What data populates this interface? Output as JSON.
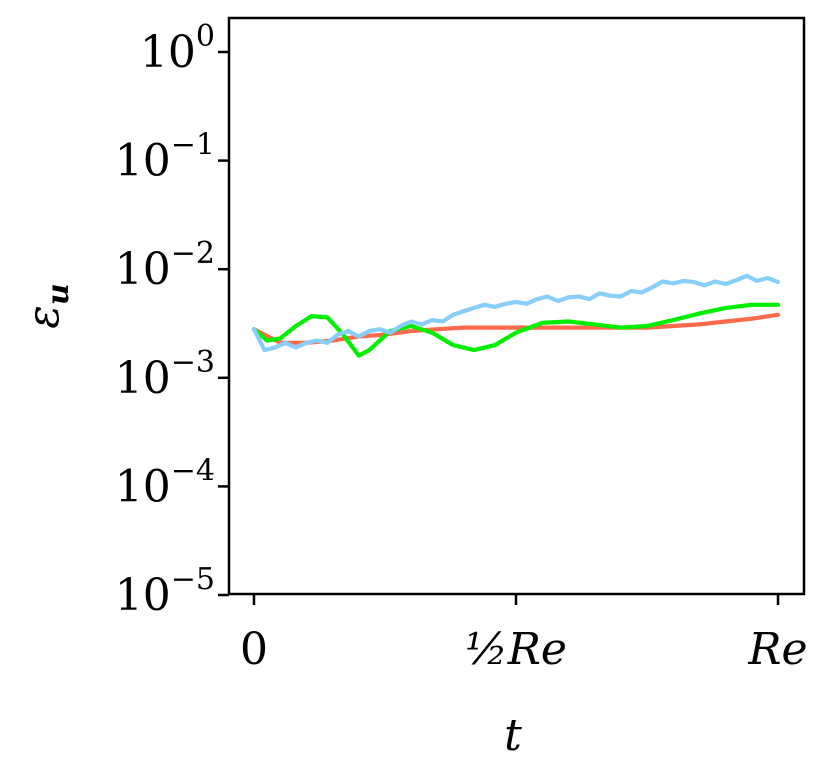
{
  "chart_data": {
    "type": "line",
    "xlabel": "t",
    "ylabel": "ε_u",
    "ylabel_main": "ε",
    "ylabel_sub": "u",
    "y_scale": "log",
    "ylim": [
      1e-05,
      2
    ],
    "xlim": [
      -0.05,
      1.05
    ],
    "grid": false,
    "x_ticks": [
      {
        "value": 0,
        "label": "0"
      },
      {
        "value": 0.5,
        "label": "½Re"
      },
      {
        "value": 1,
        "label": "Re"
      }
    ],
    "y_ticks": [
      {
        "value": 1,
        "base": "10",
        "exp": "0"
      },
      {
        "value": 0.1,
        "base": "10",
        "exp": "−1"
      },
      {
        "value": 0.01,
        "base": "10",
        "exp": "−2"
      },
      {
        "value": 0.001,
        "base": "10",
        "exp": "−3"
      },
      {
        "value": 0.0001,
        "base": "10",
        "exp": "−4"
      },
      {
        "value": 1e-05,
        "base": "10",
        "exp": "−5"
      }
    ],
    "series": [
      {
        "color": "#ff6a4d",
        "x": [
          0,
          0.05,
          0.1,
          0.15,
          0.2,
          0.25,
          0.3,
          0.35,
          0.4,
          0.45,
          0.5,
          0.55,
          0.6,
          0.65,
          0.7,
          0.75,
          0.8,
          0.85,
          0.9,
          0.95,
          1.0
        ],
        "y": [
          0.0028,
          0.0021,
          0.0021,
          0.0022,
          0.0024,
          0.0025,
          0.0027,
          0.0028,
          0.0029,
          0.0029,
          0.0029,
          0.0029,
          0.0029,
          0.0029,
          0.0029,
          0.0029,
          0.003,
          0.0031,
          0.0033,
          0.0035,
          0.0038
        ]
      },
      {
        "color": "#00ee00",
        "x": [
          0,
          0.025,
          0.05,
          0.08,
          0.11,
          0.14,
          0.17,
          0.2,
          0.22,
          0.26,
          0.3,
          0.34,
          0.38,
          0.42,
          0.46,
          0.5,
          0.55,
          0.6,
          0.65,
          0.7,
          0.75,
          0.8,
          0.85,
          0.9,
          0.95,
          1.0
        ],
        "y": [
          0.0028,
          0.0022,
          0.0023,
          0.003,
          0.0037,
          0.0036,
          0.0025,
          0.0016,
          0.0018,
          0.0027,
          0.003,
          0.0026,
          0.002,
          0.0018,
          0.002,
          0.0026,
          0.0032,
          0.0033,
          0.0031,
          0.0029,
          0.003,
          0.0034,
          0.0039,
          0.0044,
          0.0047,
          0.0047
        ]
      },
      {
        "color": "#87cefa",
        "x": [
          0,
          0.02,
          0.04,
          0.06,
          0.08,
          0.1,
          0.12,
          0.14,
          0.16,
          0.18,
          0.2,
          0.22,
          0.24,
          0.26,
          0.28,
          0.3,
          0.32,
          0.34,
          0.36,
          0.38,
          0.4,
          0.42,
          0.44,
          0.46,
          0.48,
          0.5,
          0.52,
          0.54,
          0.56,
          0.58,
          0.6,
          0.62,
          0.64,
          0.66,
          0.68,
          0.7,
          0.72,
          0.74,
          0.76,
          0.78,
          0.8,
          0.82,
          0.84,
          0.86,
          0.88,
          0.9,
          0.92,
          0.94,
          0.96,
          0.98,
          1.0
        ],
        "y": [
          0.0028,
          0.0018,
          0.0019,
          0.0021,
          0.0019,
          0.0021,
          0.0022,
          0.0021,
          0.0025,
          0.0027,
          0.0024,
          0.0027,
          0.0028,
          0.0026,
          0.003,
          0.0033,
          0.0031,
          0.0034,
          0.0033,
          0.0038,
          0.0041,
          0.0044,
          0.0047,
          0.0045,
          0.0048,
          0.005,
          0.0048,
          0.0053,
          0.0056,
          0.0051,
          0.0055,
          0.0056,
          0.0053,
          0.006,
          0.0057,
          0.0056,
          0.0063,
          0.0061,
          0.0068,
          0.0077,
          0.0074,
          0.0078,
          0.0076,
          0.0071,
          0.0077,
          0.0073,
          0.0079,
          0.0087,
          0.0078,
          0.0083,
          0.0076
        ]
      }
    ]
  }
}
